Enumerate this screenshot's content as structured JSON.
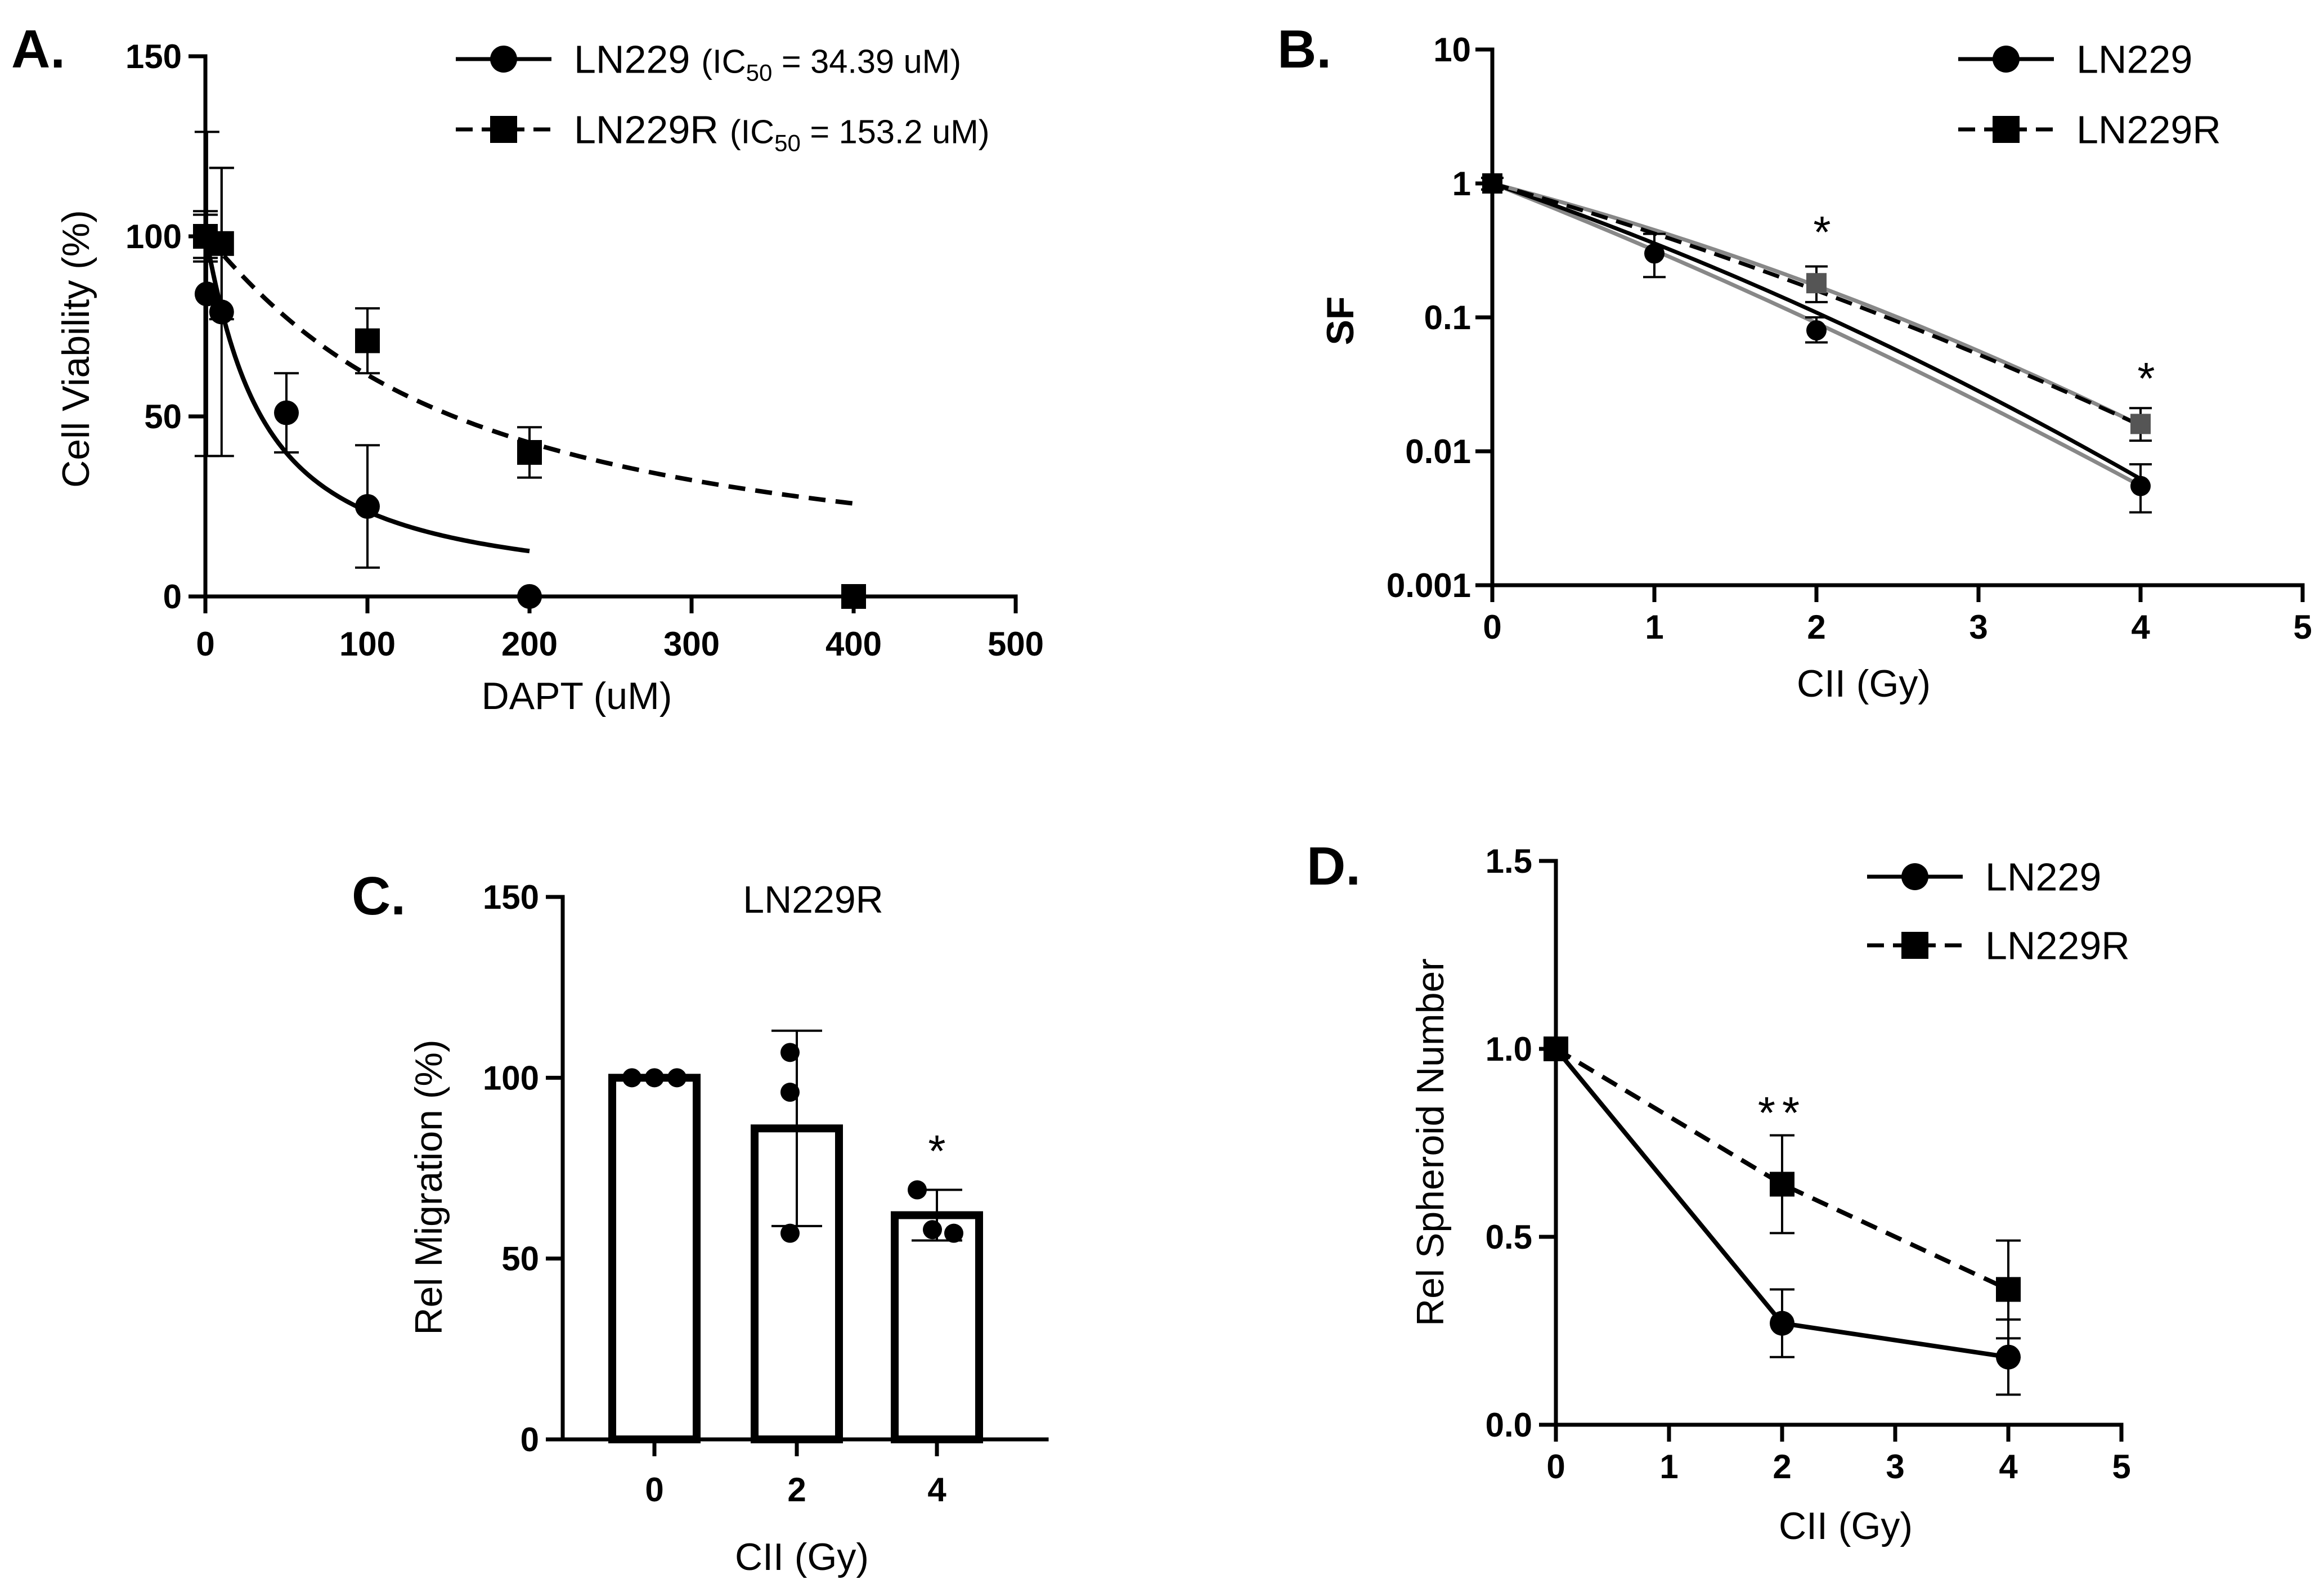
{
  "panels": [
    {
      "label": "A.",
      "chart_data": {
        "type": "scatter",
        "title": "",
        "xlabel": "DAPT (uM)",
        "ylabel": "Cell Viability (%)",
        "xlim": [
          0,
          500
        ],
        "ylim": [
          0,
          150
        ],
        "xticks": [
          "0",
          "100",
          "200",
          "300",
          "400",
          "500"
        ],
        "yticks": [
          "0",
          "50",
          "100",
          "150"
        ],
        "series": [
          {
            "name": "LN229",
            "legend": "LN229",
            "legend_extra": "(IC",
            "legend_sub": "50",
            "legend_tail": " = 34.39 uM)",
            "marker": "circle",
            "line": "solid",
            "x": [
              0,
              1,
              10,
              50,
              100,
              200
            ],
            "y": [
              100,
              84,
              79,
              51,
              25,
              0
            ],
            "err": [
              6,
              45,
              40,
              11,
              17,
              0
            ],
            "fit_ic50": 34.39
          },
          {
            "name": "LN229R",
            "legend": "LN229R",
            "legend_extra": "(IC",
            "legend_sub": "50",
            "legend_tail": " = 153.2 uM)",
            "marker": "square",
            "line": "dashed",
            "x": [
              0,
              10,
              100,
              200,
              400
            ],
            "y": [
              100,
              98,
              71,
              40,
              0
            ],
            "err": [
              7,
              21,
              9,
              7,
              0
            ],
            "fit_ic50": 153.2
          }
        ]
      }
    },
    {
      "label": "B.",
      "chart_data": {
        "type": "scatter",
        "scale_y": "log",
        "title": "",
        "xlabel": "CII (Gy)",
        "ylabel": "SF",
        "xlim": [
          0,
          5
        ],
        "ylim": [
          0.001,
          10
        ],
        "xticks": [
          "0",
          "1",
          "2",
          "3",
          "4",
          "5"
        ],
        "yticks": [
          "0.001",
          "0.01",
          "0.1",
          "1",
          "10"
        ],
        "annotations": [
          {
            "text": "*",
            "x": 2
          },
          {
            "text": "*",
            "x": 4
          }
        ],
        "series": [
          {
            "name": "LN229",
            "legend": "LN229",
            "marker": "circle",
            "line": "solid",
            "x": [
              0,
              1,
              2,
              4
            ],
            "y": [
              1,
              0.3,
              0.08,
              0.0055
            ],
            "err_lo": [
              0.9,
              0.2,
              0.065,
              0.0035
            ],
            "err_hi": [
              1.1,
              0.42,
              0.1,
              0.008
            ]
          },
          {
            "name": "LN229R",
            "legend": "LN229R",
            "marker": "square",
            "line": "dashed",
            "x": [
              0,
              2,
              4
            ],
            "y": [
              1,
              0.18,
              0.016
            ],
            "err_lo": [
              0.9,
              0.13,
              0.012
            ],
            "err_hi": [
              1.1,
              0.24,
              0.021
            ]
          }
        ]
      }
    },
    {
      "label": "C.",
      "chart_data": {
        "type": "bar",
        "title": "LN229R",
        "xlabel": "CII (Gy)",
        "ylabel": "Rel Migration (%)",
        "ylim": [
          0,
          150
        ],
        "yticks": [
          "0",
          "50",
          "100",
          "150"
        ],
        "categories": [
          "0",
          "2",
          "4"
        ],
        "values": [
          100,
          86,
          62
        ],
        "err": [
          0,
          27,
          7
        ],
        "points": [
          [
            100,
            100,
            100
          ],
          [
            107,
            96,
            57
          ],
          [
            69,
            58,
            57
          ]
        ],
        "annotations": [
          {
            "text": "*",
            "category": "4"
          }
        ]
      }
    },
    {
      "label": "D.",
      "chart_data": {
        "type": "line",
        "title": "",
        "xlabel": "CII (Gy)",
        "ylabel": "Rel Spheroid Number",
        "xlim": [
          0,
          5
        ],
        "ylim": [
          0,
          1.5
        ],
        "xticks": [
          "0",
          "1",
          "2",
          "3",
          "4",
          "5"
        ],
        "yticks": [
          "0.0",
          "0.5",
          "1.0",
          "1.5"
        ],
        "annotations": [
          {
            "text": "**",
            "x": 2
          }
        ],
        "series": [
          {
            "name": "LN229",
            "legend": "LN229",
            "marker": "circle",
            "line": "solid",
            "x": [
              0,
              2,
              4
            ],
            "y": [
              1.0,
              0.27,
              0.18
            ],
            "err": [
              0,
              0.09,
              0.1
            ]
          },
          {
            "name": "LN229R",
            "legend": "LN229R",
            "marker": "square",
            "line": "dashed",
            "x": [
              0,
              2,
              4
            ],
            "y": [
              1.0,
              0.64,
              0.36
            ],
            "err": [
              0,
              0.13,
              0.13
            ]
          }
        ]
      }
    }
  ]
}
